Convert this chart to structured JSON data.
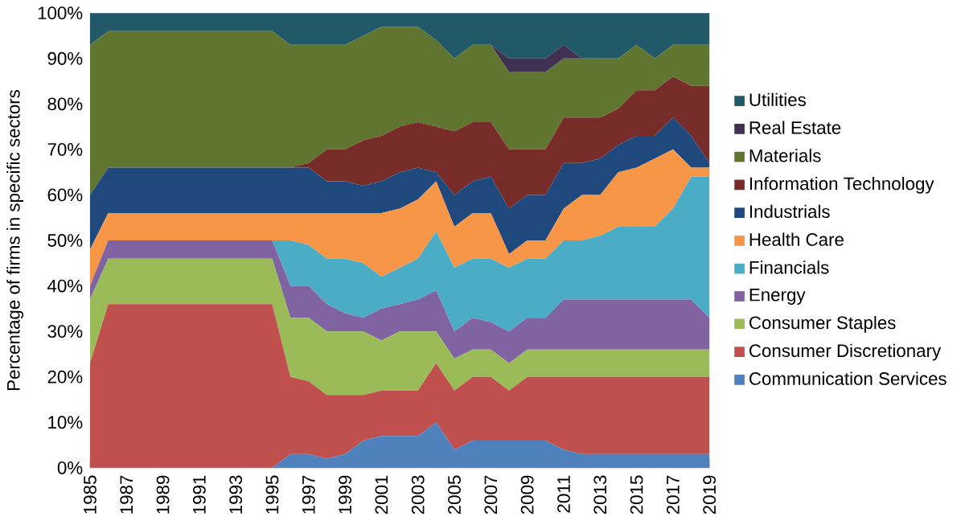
{
  "chart_data": {
    "type": "area",
    "stacked": true,
    "ylabel": "Percentage of firms in specific sectors",
    "legend": "right",
    "x": [
      1985,
      1986,
      1987,
      1988,
      1989,
      1990,
      1991,
      1992,
      1993,
      1994,
      1995,
      1996,
      1997,
      1998,
      1999,
      2000,
      2001,
      2002,
      2003,
      2004,
      2005,
      2006,
      2007,
      2008,
      2009,
      2010,
      2011,
      2012,
      2013,
      2014,
      2015,
      2016,
      2017,
      2018,
      2019
    ],
    "xlim": [
      1985,
      2019
    ],
    "xticks": [
      1985,
      1987,
      1989,
      1991,
      1993,
      1995,
      1997,
      1999,
      2001,
      2003,
      2005,
      2007,
      2009,
      2011,
      2013,
      2015,
      2017,
      2019
    ],
    "ylim": [
      0,
      100
    ],
    "yticks": [
      {
        "value": 0,
        "label": "0%"
      },
      {
        "value": 10,
        "label": "10%"
      },
      {
        "value": 20,
        "label": "20%"
      },
      {
        "value": 30,
        "label": "30%"
      },
      {
        "value": 40,
        "label": "40%"
      },
      {
        "value": 50,
        "label": "50%"
      },
      {
        "value": 60,
        "label": "60%"
      },
      {
        "value": 70,
        "label": "70%"
      },
      {
        "value": 80,
        "label": "80%"
      },
      {
        "value": 90,
        "label": "90%"
      },
      {
        "value": 100,
        "label": "100%"
      }
    ],
    "series": [
      {
        "name": "Communication Services",
        "color": "#4f81bd",
        "values": [
          0,
          0,
          0,
          0,
          0,
          0,
          0,
          0,
          0,
          0,
          0,
          3,
          3,
          2,
          3,
          6,
          7,
          7,
          7,
          10,
          4,
          6,
          6,
          6,
          6,
          6,
          4,
          3,
          3,
          3,
          3,
          3,
          3,
          3,
          3
        ]
      },
      {
        "name": "Consumer Discretionary",
        "color": "#c0504d",
        "values": [
          23,
          36,
          36,
          36,
          36,
          36,
          36,
          36,
          36,
          36,
          36,
          17,
          16,
          14,
          13,
          10,
          10,
          10,
          10,
          13,
          13,
          14,
          14,
          11,
          14,
          14,
          16,
          17,
          17,
          17,
          17,
          17,
          17,
          17,
          17
        ]
      },
      {
        "name": "Consumer Staples",
        "color": "#9bbb59",
        "values": [
          14,
          10,
          10,
          10,
          10,
          10,
          10,
          10,
          10,
          10,
          10,
          13,
          14,
          14,
          14,
          14,
          11,
          13,
          13,
          7,
          7,
          6,
          6,
          6,
          6,
          6,
          6,
          6,
          6,
          6,
          6,
          6,
          6,
          6,
          6
        ]
      },
      {
        "name": "Energy",
        "color": "#8064a2",
        "values": [
          3,
          4,
          4,
          4,
          4,
          4,
          4,
          4,
          4,
          4,
          4,
          7,
          7,
          6,
          4,
          3,
          7,
          6,
          7,
          9,
          6,
          7,
          6,
          7,
          7,
          7,
          11,
          11,
          11,
          11,
          11,
          11,
          11,
          11,
          7
        ]
      },
      {
        "name": "Financials",
        "color": "#4bacc6",
        "values": [
          0,
          0,
          0,
          0,
          0,
          0,
          0,
          0,
          0,
          0,
          0,
          10,
          9,
          10,
          12,
          12,
          7,
          8,
          9,
          13,
          14,
          13,
          14,
          14,
          13,
          13,
          13,
          13,
          14,
          16,
          16,
          16,
          20,
          27,
          31
        ]
      },
      {
        "name": "Health Care",
        "color": "#f79646",
        "values": [
          8,
          6,
          6,
          6,
          6,
          6,
          6,
          6,
          6,
          6,
          6,
          6,
          7,
          10,
          10,
          11,
          14,
          13,
          13,
          11,
          9,
          10,
          10,
          3,
          4,
          4,
          7,
          10,
          9,
          12,
          13,
          15,
          13,
          2,
          2
        ]
      },
      {
        "name": "Industrials",
        "color": "#1f497d",
        "values": [
          12,
          10,
          10,
          10,
          10,
          10,
          10,
          10,
          10,
          10,
          10,
          10,
          10,
          7,
          7,
          6,
          7,
          8,
          7,
          2,
          7,
          7,
          8,
          10,
          10,
          10,
          10,
          7,
          8,
          6,
          7,
          5,
          7,
          7,
          1
        ]
      },
      {
        "name": "Information Technology",
        "color": "#772c2a",
        "values": [
          0,
          0,
          0,
          0,
          0,
          0,
          0,
          0,
          0,
          0,
          0,
          0,
          1,
          7,
          7,
          10,
          10,
          10,
          10,
          10,
          14,
          13,
          12,
          13,
          10,
          10,
          10,
          10,
          9,
          8,
          10,
          10,
          9,
          11,
          17
        ]
      },
      {
        "name": "Materials",
        "color": "#5f7530",
        "values": [
          33,
          30,
          30,
          30,
          30,
          30,
          30,
          30,
          30,
          30,
          30,
          27,
          26,
          23,
          23,
          23,
          24,
          22,
          21,
          19,
          16,
          17,
          17,
          17,
          17,
          17,
          13,
          13,
          13,
          11,
          10,
          7,
          7,
          9,
          9
        ]
      },
      {
        "name": "Real Estate",
        "color": "#403152",
        "values": [
          0,
          0,
          0,
          0,
          0,
          0,
          0,
          0,
          0,
          0,
          0,
          0,
          0,
          0,
          0,
          0,
          0,
          0,
          0,
          0,
          0,
          0,
          0,
          3,
          3,
          3,
          3,
          0,
          0,
          0,
          0,
          0,
          0,
          0,
          0
        ]
      },
      {
        "name": "Utilities",
        "color": "#215968",
        "values": [
          7,
          4,
          4,
          4,
          4,
          4,
          4,
          4,
          4,
          4,
          4,
          7,
          7,
          7,
          7,
          5,
          3,
          3,
          3,
          6,
          10,
          7,
          7,
          10,
          10,
          10,
          7,
          10,
          10,
          10,
          7,
          10,
          7,
          7,
          7
        ]
      }
    ]
  }
}
